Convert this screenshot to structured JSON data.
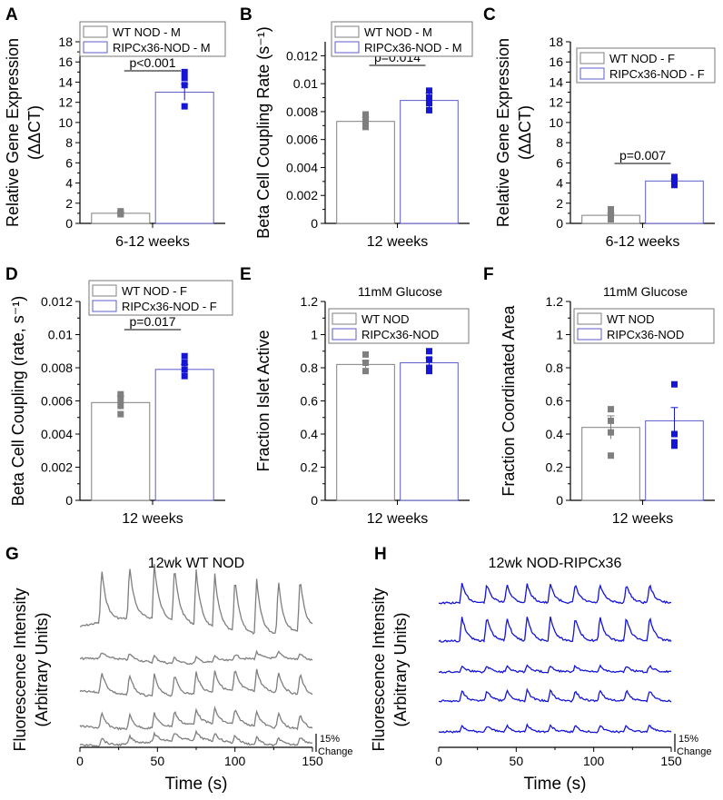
{
  "colors": {
    "wt": "#7f7f7f",
    "rip": "#1515d6",
    "ripBar": "#5c5ccc",
    "axis": "#000000"
  },
  "chart_data": [
    {
      "panel": "A",
      "type": "bar",
      "title": "",
      "ylabel": [
        "Relative Gene Expression",
        "(ΔΔCT)"
      ],
      "ylim": [
        0,
        18
      ],
      "yticks": [
        0,
        2,
        4,
        6,
        8,
        10,
        12,
        14,
        16,
        18
      ],
      "ytick_labels": [
        "0",
        "2",
        "4",
        "6",
        "8",
        "10",
        "12",
        "14",
        "16",
        "18"
      ],
      "xlabel": "6-12 weeks",
      "legend": [
        "WT NOD - M",
        "RIPCx36-NOD - M"
      ],
      "pvalue": "p<0.001",
      "series": [
        {
          "name": "WT NOD - M",
          "mean": 1.0,
          "err": 0.1,
          "points": [
            1.2,
            1.0,
            0.9
          ]
        },
        {
          "name": "RIPCx36-NOD - M",
          "mean": 13.0,
          "err": 0.8,
          "points": [
            15.0,
            14.4,
            13.7,
            11.6
          ]
        }
      ]
    },
    {
      "panel": "B",
      "type": "bar",
      "title": "",
      "ylabel": [
        "Beta Cell Coupling Rate (s⁻¹)"
      ],
      "ylim": [
        0,
        0.013
      ],
      "yticks": [
        0,
        0.002,
        0.004,
        0.006,
        0.008,
        0.01,
        0.012
      ],
      "ytick_labels": [
        "0",
        "0.002",
        "0.004",
        "0.006",
        "0.008",
        "0.01",
        "0.012"
      ],
      "xlabel": "12 weeks",
      "legend": [
        "WT NOD - M",
        "RIPCx36-NOD - M"
      ],
      "pvalue": "p=0.014",
      "series": [
        {
          "name": "WT NOD - M",
          "mean": 0.0073,
          "err": 0.0003,
          "points": [
            0.0078,
            0.0074,
            0.0071,
            0.0069
          ]
        },
        {
          "name": "RIPCx36-NOD - M",
          "mean": 0.0088,
          "err": 0.0005,
          "points": [
            0.0095,
            0.009,
            0.0086,
            0.0081
          ]
        }
      ]
    },
    {
      "panel": "C",
      "type": "bar",
      "title": "",
      "ylabel": [
        "Relative Gene Expression",
        "(ΔΔCT)"
      ],
      "ylim": [
        0,
        18
      ],
      "yticks": [
        0,
        2,
        4,
        6,
        8,
        10,
        12,
        14,
        16,
        18
      ],
      "ytick_labels": [
        "0",
        "2",
        "4",
        "6",
        "8",
        "10",
        "12",
        "14",
        "16",
        "18"
      ],
      "xlabel": "6-12 weeks",
      "legend": [
        "WT NOD - F",
        "RIPCx36-NOD - F"
      ],
      "pvalue": "p=0.007",
      "series": [
        {
          "name": "WT NOD - F",
          "mean": 0.8,
          "err": 0.2,
          "points": [
            1.4,
            0.9,
            0.4
          ]
        },
        {
          "name": "RIPCx36-NOD - F",
          "mean": 4.2,
          "err": 0.2,
          "points": [
            4.6,
            4.2,
            3.8
          ]
        }
      ]
    },
    {
      "panel": "D",
      "type": "bar",
      "title": "",
      "ylabel": [
        "Beta Cell Coupling (rate, s⁻¹)"
      ],
      "ylim": [
        0,
        0.012
      ],
      "yticks": [
        0,
        0.002,
        0.004,
        0.006,
        0.008,
        0.01,
        0.012
      ],
      "ytick_labels": [
        "0",
        "0.002",
        "0.004",
        "0.006",
        "0.008",
        "0.01",
        "0.012"
      ],
      "xlabel": "12 weeks",
      "legend": [
        "WT NOD - F",
        "RIPCx36-NOD - F"
      ],
      "pvalue": "p=0.017",
      "series": [
        {
          "name": "WT NOD - F",
          "mean": 0.0059,
          "err": 0.0004,
          "points": [
            0.0064,
            0.0061,
            0.0057,
            0.0052
          ]
        },
        {
          "name": "RIPCx36-NOD - F",
          "mean": 0.0079,
          "err": 0.0003,
          "points": [
            0.0087,
            0.0083,
            0.0079,
            0.0075
          ]
        }
      ]
    },
    {
      "panel": "E",
      "type": "bar",
      "title": "11mM Glucose",
      "ylabel": [
        "Fraction Islet Active"
      ],
      "ylim": [
        0,
        1.2
      ],
      "yticks": [
        0,
        0.2,
        0.4,
        0.6,
        0.8,
        1.0,
        1.2
      ],
      "ytick_labels": [
        "0",
        "0.2",
        "0.4",
        "0.6",
        "0.8",
        "1",
        "1.2"
      ],
      "xlabel": "12 weeks",
      "legend": [
        "WT NOD",
        "RIPCx36-NOD"
      ],
      "pvalue": "",
      "series": [
        {
          "name": "WT NOD",
          "mean": 0.82,
          "err": 0.02,
          "points": [
            0.88,
            0.83,
            0.78
          ]
        },
        {
          "name": "RIPCx36-NOD",
          "mean": 0.83,
          "err": 0.03,
          "points": [
            0.9,
            0.85,
            0.8,
            0.78
          ]
        }
      ]
    },
    {
      "panel": "F",
      "type": "bar",
      "title": "11mM Glucose",
      "ylabel": [
        "Fraction Coordinated Area"
      ],
      "ylim": [
        0,
        1.2
      ],
      "yticks": [
        0,
        0.2,
        0.4,
        0.6,
        0.8,
        1.0,
        1.2
      ],
      "ytick_labels": [
        "0",
        "0.2",
        "0.4",
        "0.6",
        "0.8",
        "1",
        "1.2"
      ],
      "xlabel": "12 weeks",
      "legend": [
        "WT NOD",
        "RIPCx36-NOD"
      ],
      "pvalue": "",
      "series": [
        {
          "name": "WT NOD",
          "mean": 0.44,
          "err": 0.07,
          "points": [
            0.55,
            0.48,
            0.41,
            0.27
          ]
        },
        {
          "name": "RIPCx36-NOD",
          "mean": 0.48,
          "err": 0.08,
          "points": [
            0.7,
            0.4,
            0.35,
            0.33
          ]
        }
      ]
    },
    {
      "panel": "G",
      "type": "line",
      "title": "12wk WT NOD",
      "ylabel": [
        "Fluorescence Intensity",
        "(Arbitrary Units)"
      ],
      "xlabel": "Time (s)",
      "xlim": [
        0,
        150
      ],
      "xticks": [
        0,
        50,
        100,
        150
      ],
      "xtick_labels": [
        "0",
        "50",
        "100",
        "150"
      ],
      "scale_label": [
        "15%",
        "Change"
      ],
      "trace_count": 5,
      "peak_times": [
        14,
        32,
        48,
        61,
        75,
        87,
        100,
        114,
        128,
        142
      ],
      "amplitudes": [
        1.0,
        0.12,
        0.4,
        0.28,
        0.15
      ]
    },
    {
      "panel": "H",
      "type": "line",
      "title": "12wk NOD-RIPCx36",
      "ylabel": [
        "Fluorescence Intensity",
        "(Arbitrary Units)"
      ],
      "xlabel": "Time (s)",
      "xlim": [
        0,
        150
      ],
      "xticks": [
        0,
        50,
        100,
        150
      ],
      "xtick_labels": [
        "0",
        "50",
        "100",
        "150"
      ],
      "scale_label": [
        "15%",
        "Change"
      ],
      "trace_count": 5,
      "peak_times": [
        15,
        31,
        44,
        57,
        72,
        88,
        104,
        121,
        136
      ],
      "amplitudes": [
        0.35,
        0.45,
        0.12,
        0.2,
        0.12
      ]
    }
  ]
}
